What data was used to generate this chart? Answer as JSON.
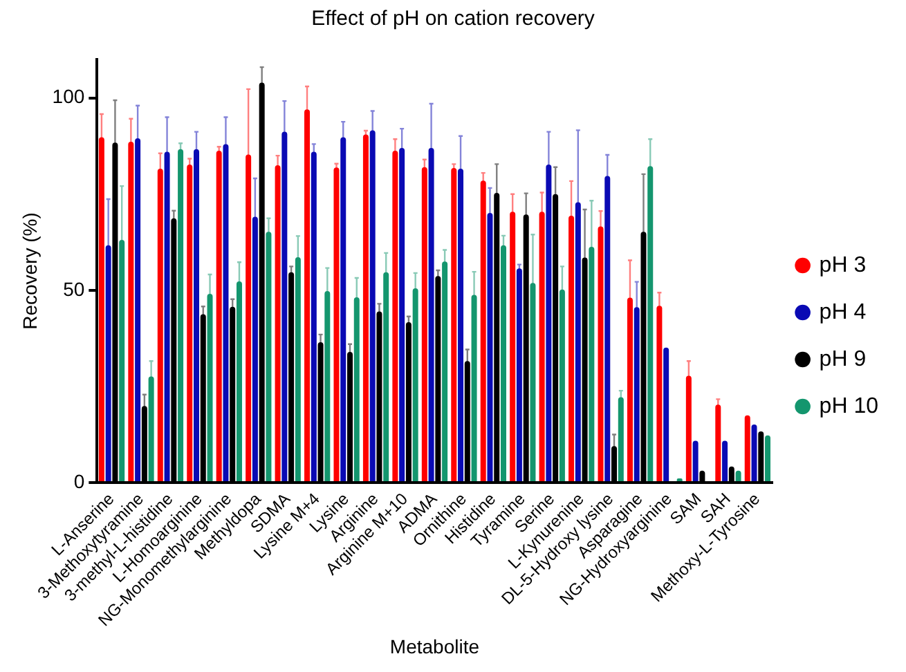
{
  "chart_data": {
    "type": "bar",
    "title": "Effect of pH on cation recovery",
    "xlabel": "Metabolite",
    "ylabel": "Recovery (%)",
    "categories": [
      "L-Anserine",
      "3-Methoxytyramine",
      "3-methyl-L-histidine",
      "L-Homoarginine",
      "NG-Monomethylarginine",
      "Methyldopa",
      "SDMA",
      "Lysine M+4",
      "Lysine",
      "Arginine",
      "Arginine M+10",
      "ADMA",
      "Ornithine",
      "Histidine",
      "Tyramine",
      "Serine",
      "L-Kynurenine",
      "DL-5-Hydroxy lysine",
      "Asparagine",
      "NG-Hydroxyarginine",
      "SAM",
      "SAH",
      "Methoxy-L-Tyrosine"
    ],
    "series": [
      {
        "name": "pH 3",
        "color": "#ff0000",
        "values": [
          89.8,
          88.6,
          81.6,
          82.7,
          86.3,
          85.3,
          82.5,
          97,
          81.9,
          90.5,
          86.3,
          82,
          81.8,
          78.5,
          70.4,
          70.4,
          69.4,
          66.6,
          48.1,
          46,
          27.8,
          20.3,
          17.5
        ],
        "errors": [
          6,
          6,
          4,
          1.5,
          1,
          17,
          2.5,
          6,
          1,
          1,
          3,
          2,
          1,
          2,
          4.6,
          5,
          9,
          4,
          9.7,
          3.4,
          3.8,
          1.4,
          null
        ]
      },
      {
        "name": "pH 4",
        "color": "#0a0ab4",
        "values": [
          61.7,
          89.5,
          86,
          86.7,
          88,
          69.1,
          91.2,
          86,
          89.8,
          91.6,
          87,
          87,
          81.6,
          70.1,
          55.7,
          82.7,
          72.9,
          79.7,
          45.6,
          35.1,
          10.9,
          10.9,
          15.1
        ],
        "errors": [
          12,
          8.5,
          9,
          4.5,
          7,
          10,
          8,
          2,
          4,
          5,
          5,
          11.5,
          8.5,
          6.5,
          1,
          8.5,
          18.7,
          5.5,
          6.6,
          null,
          null,
          null,
          null
        ]
      },
      {
        "name": "pH 9",
        "color": "#000000",
        "values": [
          88.4,
          19.9,
          68.7,
          43.8,
          45.7,
          104,
          54.7,
          36.5,
          34,
          44.5,
          41.7,
          53.7,
          31.6,
          75.3,
          69.7,
          75,
          58.5,
          9.5,
          65.2,
          0.3,
          3.1,
          4.2,
          13.3
        ],
        "errors": [
          11,
          3,
          2,
          2,
          2,
          4,
          1.5,
          2,
          2,
          2,
          1.5,
          1.5,
          3,
          7.5,
          5.5,
          7,
          12.5,
          3,
          15,
          null,
          null,
          null,
          null
        ]
      },
      {
        "name": "pH 10",
        "color": "#14966e",
        "values": [
          63.1,
          27.6,
          86.7,
          49.1,
          52.3,
          65.2,
          58.6,
          49.8,
          48.2,
          54.7,
          50.5,
          57.5,
          48.8,
          61.7,
          51.9,
          50.2,
          61.3,
          22.2,
          82.3,
          1.1,
          0,
          3.1,
          12.3
        ],
        "errors": [
          14,
          4,
          1.5,
          5,
          5,
          3.5,
          5.5,
          6,
          5,
          5,
          4,
          3,
          6,
          2.5,
          12.6,
          6,
          12,
          1.7,
          7,
          null,
          null,
          null,
          null
        ]
      }
    ],
    "ylim": [
      0,
      110
    ],
    "yticks": [
      0,
      50,
      100
    ],
    "grid": false,
    "legend": "right"
  }
}
